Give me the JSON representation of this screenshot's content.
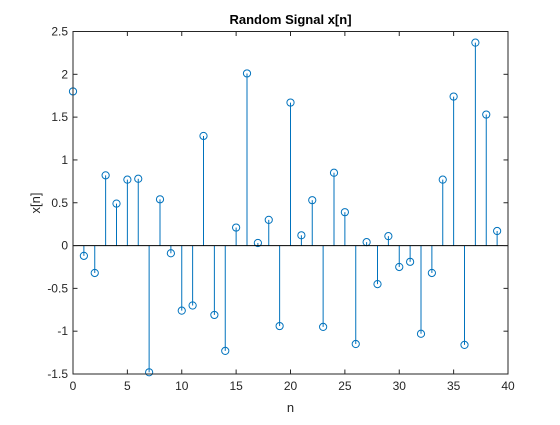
{
  "colors": {
    "background": "#ffffff",
    "plot_background": "#ffffff",
    "axis": "#262626",
    "series": "#0072bd"
  },
  "chart_data": {
    "type": "stem",
    "title": "Random Signal x[n]",
    "xlabel": "n",
    "ylabel": "x[n]",
    "xlim": [
      0,
      40
    ],
    "ylim": [
      -1.5,
      2.5
    ],
    "xticks": [
      "0",
      "5",
      "10",
      "15",
      "20",
      "25",
      "30",
      "35",
      "40"
    ],
    "yticks": [
      "-1.5",
      "-1",
      "-0.5",
      "0",
      "0.5",
      "1",
      "1.5",
      "2",
      "2.5"
    ],
    "grid": false,
    "marker": "circle",
    "baseline": 0,
    "x": [
      0,
      1,
      2,
      3,
      4,
      5,
      6,
      7,
      8,
      9,
      10,
      11,
      12,
      13,
      14,
      15,
      16,
      17,
      18,
      19,
      20,
      21,
      22,
      23,
      24,
      25,
      26,
      27,
      28,
      29,
      30,
      31,
      32,
      33,
      34,
      35,
      36,
      37,
      38,
      39
    ],
    "y": [
      1.8,
      -0.12,
      -0.32,
      0.82,
      0.49,
      0.77,
      0.78,
      -1.48,
      0.54,
      -0.09,
      -0.76,
      -0.7,
      1.28,
      -0.81,
      -1.23,
      0.21,
      2.01,
      0.03,
      0.3,
      -0.94,
      1.67,
      0.12,
      0.53,
      -0.95,
      0.85,
      0.39,
      -1.15,
      0.04,
      -0.45,
      0.11,
      -0.25,
      -0.19,
      -1.03,
      -0.32,
      0.77,
      1.74,
      -1.16,
      2.37,
      1.53,
      0.17
    ]
  }
}
